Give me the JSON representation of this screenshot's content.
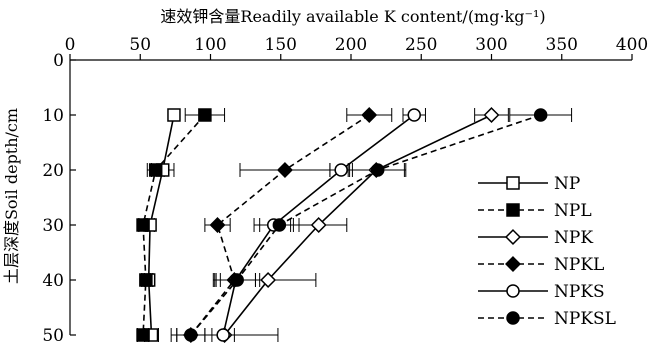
{
  "chart_data": {
    "type": "line",
    "orientation": "depth-profile",
    "x_axis_position": "top",
    "xlabel": "速效钾含量Readily available K content/(mg·kg⁻¹)",
    "ylabel": "土层深度Soil depth/cm",
    "xlim": [
      0,
      400
    ],
    "ylim": [
      0,
      50
    ],
    "y_inverted": true,
    "x_ticks": [
      0,
      50,
      100,
      150,
      200,
      250,
      300,
      350,
      400
    ],
    "y_ticks": [
      0,
      10,
      20,
      30,
      40,
      50
    ],
    "grid": false,
    "legend_position": "right",
    "y": [
      10,
      20,
      30,
      40,
      50
    ],
    "series": [
      {
        "name": "NP",
        "line": "solid",
        "marker": "square",
        "fill": "open",
        "x": [
          74,
          66,
          57,
          56,
          58
        ],
        "xerr": [
          0,
          8,
          3,
          3,
          5
        ]
      },
      {
        "name": "NPL",
        "line": "dashed",
        "marker": "square",
        "fill": "filled",
        "x": [
          96,
          61,
          52,
          54,
          52
        ],
        "xerr": [
          14,
          6,
          3,
          3,
          4
        ]
      },
      {
        "name": "NPK",
        "line": "solid",
        "marker": "diamond",
        "fill": "open",
        "x": [
          300,
          218,
          177,
          141,
          110
        ],
        "xerr": [
          12,
          20,
          20,
          34,
          38
        ]
      },
      {
        "name": "NPKL",
        "line": "dashed",
        "marker": "diamond",
        "fill": "filled",
        "x": [
          213,
          153,
          105,
          117,
          86
        ],
        "xerr": [
          16,
          32,
          9,
          15,
          10
        ]
      },
      {
        "name": "NPKS",
        "line": "solid",
        "marker": "circle",
        "fill": "open",
        "x": [
          245,
          193,
          145,
          118,
          109
        ],
        "xerr": [
          8,
          8,
          14,
          14,
          8
        ]
      },
      {
        "name": "NPKSL",
        "line": "dashed",
        "marker": "circle",
        "fill": "filled",
        "x": [
          335,
          219,
          149,
          119,
          86
        ],
        "xerr": [
          22,
          20,
          14,
          16,
          10
        ]
      }
    ]
  }
}
